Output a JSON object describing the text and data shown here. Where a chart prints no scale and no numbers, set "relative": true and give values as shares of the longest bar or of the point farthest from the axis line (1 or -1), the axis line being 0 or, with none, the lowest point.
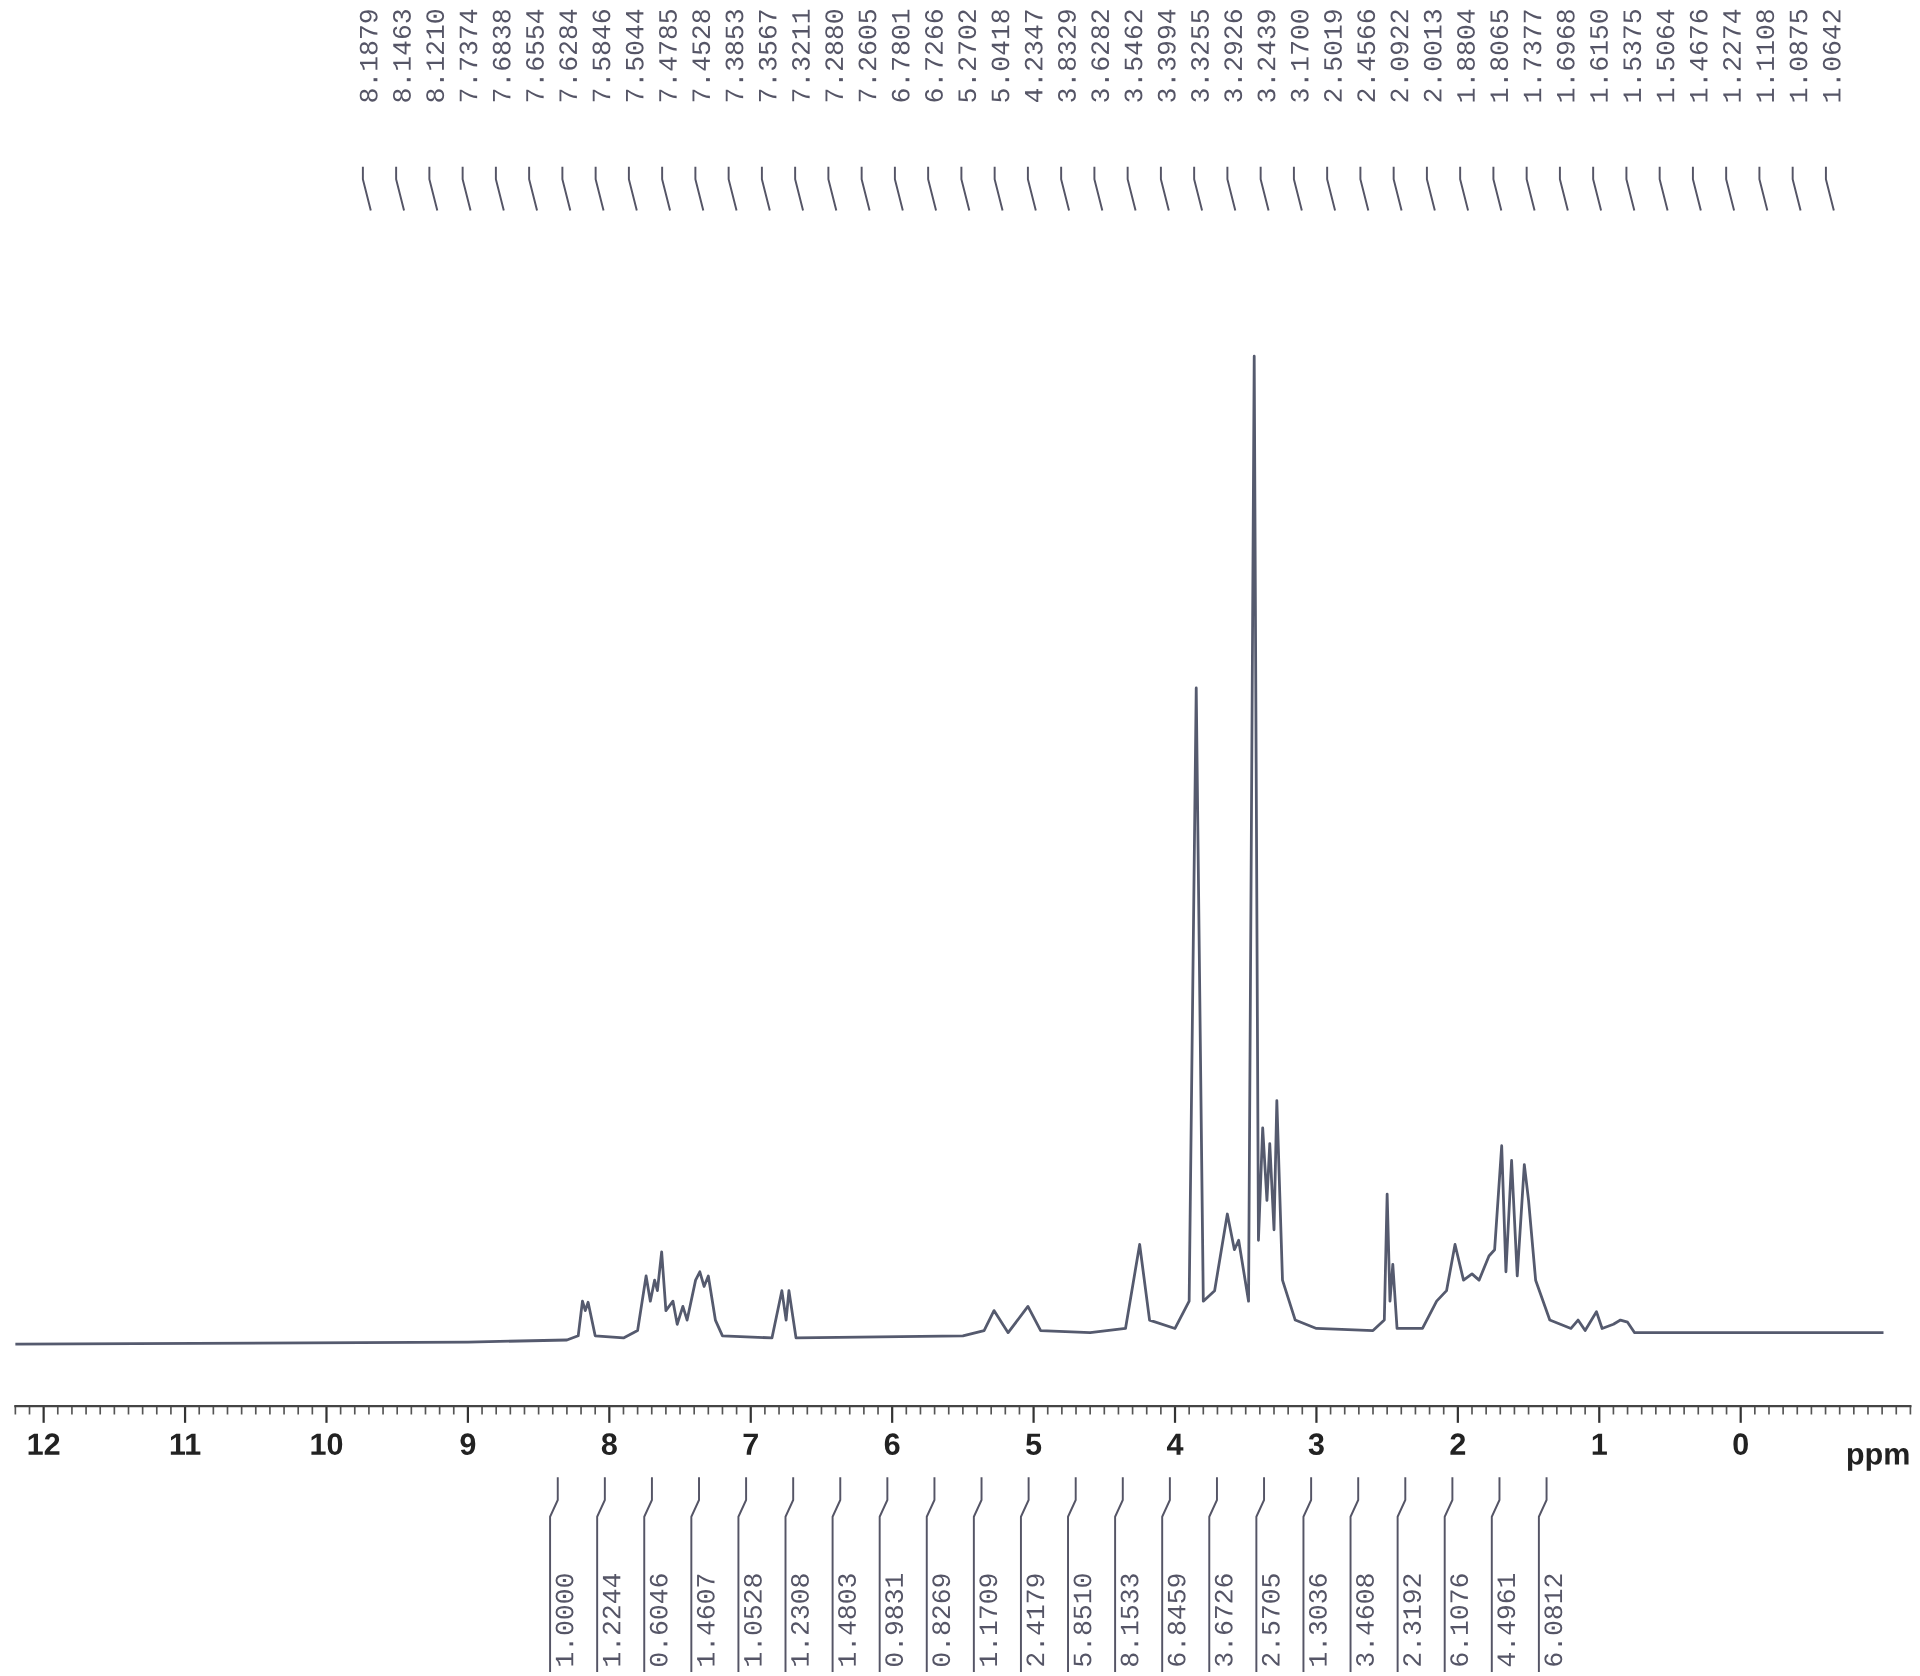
{
  "chart_data": {
    "type": "line",
    "relative": true,
    "xlabel": "ppm",
    "xlim": [
      12.2,
      -1.2
    ],
    "xticks": [
      12,
      11,
      10,
      9,
      8,
      7,
      6,
      5,
      4,
      3,
      2,
      1,
      0
    ],
    "grid": false,
    "legend": false,
    "marker": "none",
    "line_style": "solid",
    "series": [
      {
        "color": "#555a6e",
        "x": [
          12.2,
          9.0,
          8.3,
          8.22,
          8.19,
          8.17,
          8.15,
          8.1,
          7.9,
          7.8,
          7.74,
          7.71,
          7.68,
          7.66,
          7.63,
          7.6,
          7.55,
          7.52,
          7.48,
          7.45,
          7.39,
          7.36,
          7.33,
          7.3,
          7.25,
          7.2,
          6.85,
          6.78,
          6.75,
          6.73,
          6.68,
          5.5,
          5.35,
          5.28,
          5.18,
          5.04,
          4.95,
          4.6,
          4.35,
          4.25,
          4.18,
          4.0,
          3.9,
          3.85,
          3.8,
          3.72,
          3.63,
          3.58,
          3.55,
          3.48,
          3.44,
          3.41,
          3.38,
          3.35,
          3.33,
          3.3,
          3.28,
          3.24,
          3.15,
          3.0,
          2.6,
          2.52,
          2.5,
          2.48,
          2.46,
          2.43,
          2.25,
          2.15,
          2.08,
          2.02,
          1.96,
          1.9,
          1.85,
          1.78,
          1.74,
          1.69,
          1.66,
          1.62,
          1.58,
          1.53,
          1.5,
          1.45,
          1.35,
          1.2,
          1.15,
          1.1,
          1.02,
          0.98,
          0.9,
          0.85,
          0.8,
          0.75,
          -1.0
        ],
        "values": [
          0.059,
          0.061,
          0.063,
          0.067,
          0.1,
          0.091,
          0.099,
          0.067,
          0.065,
          0.072,
          0.124,
          0.1,
          0.12,
          0.11,
          0.147,
          0.091,
          0.1,
          0.078,
          0.095,
          0.082,
          0.12,
          0.128,
          0.114,
          0.124,
          0.082,
          0.067,
          0.065,
          0.11,
          0.082,
          0.11,
          0.065,
          0.067,
          0.072,
          0.091,
          0.07,
          0.095,
          0.072,
          0.07,
          0.074,
          0.154,
          0.082,
          0.074,
          0.1,
          0.684,
          0.1,
          0.11,
          0.183,
          0.149,
          0.158,
          0.1,
          1.0,
          0.158,
          0.265,
          0.196,
          0.25,
          0.168,
          0.291,
          0.12,
          0.082,
          0.074,
          0.072,
          0.082,
          0.202,
          0.1,
          0.135,
          0.074,
          0.074,
          0.1,
          0.11,
          0.154,
          0.12,
          0.126,
          0.12,
          0.143,
          0.149,
          0.248,
          0.128,
          0.234,
          0.124,
          0.23,
          0.196,
          0.12,
          0.082,
          0.074,
          0.082,
          0.072,
          0.09,
          0.074,
          0.078,
          0.082,
          0.08,
          0.07,
          0.07
        ]
      }
    ],
    "annotations": [
      "8.1879",
      "8.1463",
      "8.1210",
      "7.7374",
      "7.6838",
      "7.6554",
      "7.6284",
      "7.5846",
      "7.5044",
      "7.4785",
      "7.4528",
      "7.3853",
      "7.3567",
      "7.3211",
      "7.2880",
      "7.2605",
      "6.7801",
      "6.7266",
      "5.2702",
      "5.0418",
      "4.2347",
      "3.8329",
      "3.6282",
      "3.5462",
      "3.3994",
      "3.3255",
      "3.2926",
      "3.2439",
      "3.1700",
      "2.5019",
      "2.4566",
      "2.0922",
      "2.0013",
      "1.8804",
      "1.8065",
      "1.7377",
      "1.6968",
      "1.6150",
      "1.5375",
      "1.5064",
      "1.4676",
      "1.2274",
      "1.1108",
      "1.0875",
      "1.0642",
      "1.0000",
      "1.2244",
      "0.6046",
      "1.4607",
      "1.0528",
      "1.2308",
      "1.4803",
      "0.9831",
      "0.8269",
      "1.1709",
      "2.4179",
      "5.8510",
      "8.1533",
      "6.8459",
      "3.6726",
      "2.5705",
      "1.3036",
      "3.4608",
      "2.3192",
      "6.1076",
      "4.4961",
      "6.0812"
    ]
  }
}
